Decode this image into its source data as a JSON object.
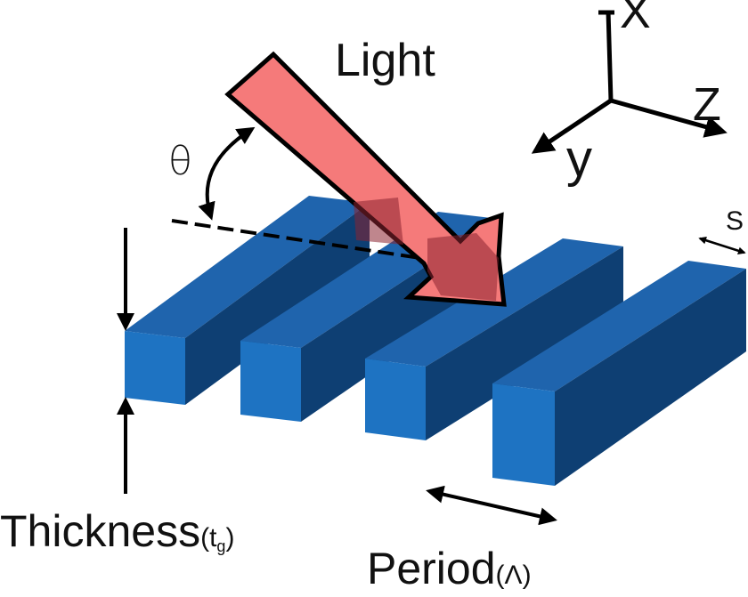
{
  "labels": {
    "light": "Light",
    "theta": "θ",
    "axis_x": "X",
    "axis_y": "y",
    "axis_z": "Z",
    "spacing": "S",
    "thickness": "Thickness",
    "thickness_symbol": "t",
    "thickness_subscript": "g",
    "period": "Period",
    "period_symbol": "Λ"
  },
  "colors": {
    "grating_top": "#1f64ad",
    "grating_front": "#1e73c2",
    "grating_side": "#0e3f73",
    "light_arrow": "#f57a7a",
    "light_arrow_shadow": "#8b2330",
    "outline": "#000000"
  }
}
